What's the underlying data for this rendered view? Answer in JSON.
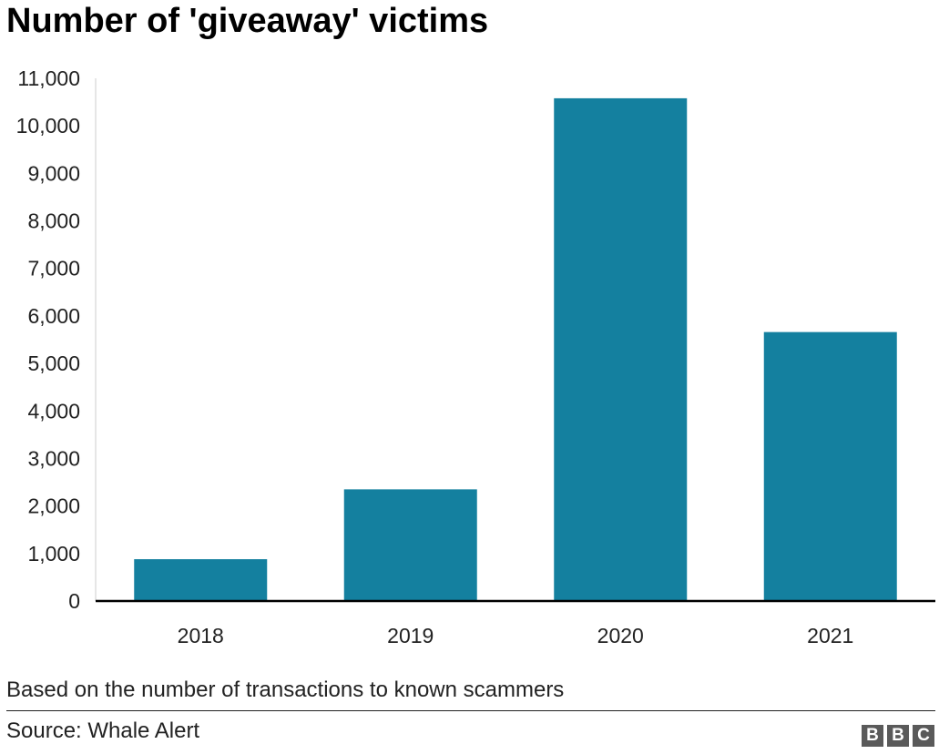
{
  "chart_data": {
    "type": "bar",
    "title": "Number of 'giveaway' victims",
    "categories": [
      "2018",
      "2019",
      "2020",
      "2021"
    ],
    "values": [
      880,
      2350,
      10580,
      5660
    ],
    "ylim": [
      0,
      11000
    ],
    "yticks": [
      0,
      1000,
      2000,
      3000,
      4000,
      5000,
      6000,
      7000,
      8000,
      9000,
      10000,
      11000
    ],
    "ytick_labels": [
      "0",
      "1,000",
      "2,000",
      "3,000",
      "4,000",
      "5,000",
      "6,000",
      "7,000",
      "8,000",
      "9,000",
      "10,000",
      "11,000"
    ],
    "xlabel": "",
    "ylabel": "",
    "grid": false,
    "legend": "none",
    "bar_color": "#14809f",
    "note": "Based on the number of transactions to known scammers",
    "source": "Source: Whale Alert"
  },
  "logo": {
    "letters": [
      "B",
      "B",
      "C"
    ],
    "color": "#5a5a5a"
  }
}
